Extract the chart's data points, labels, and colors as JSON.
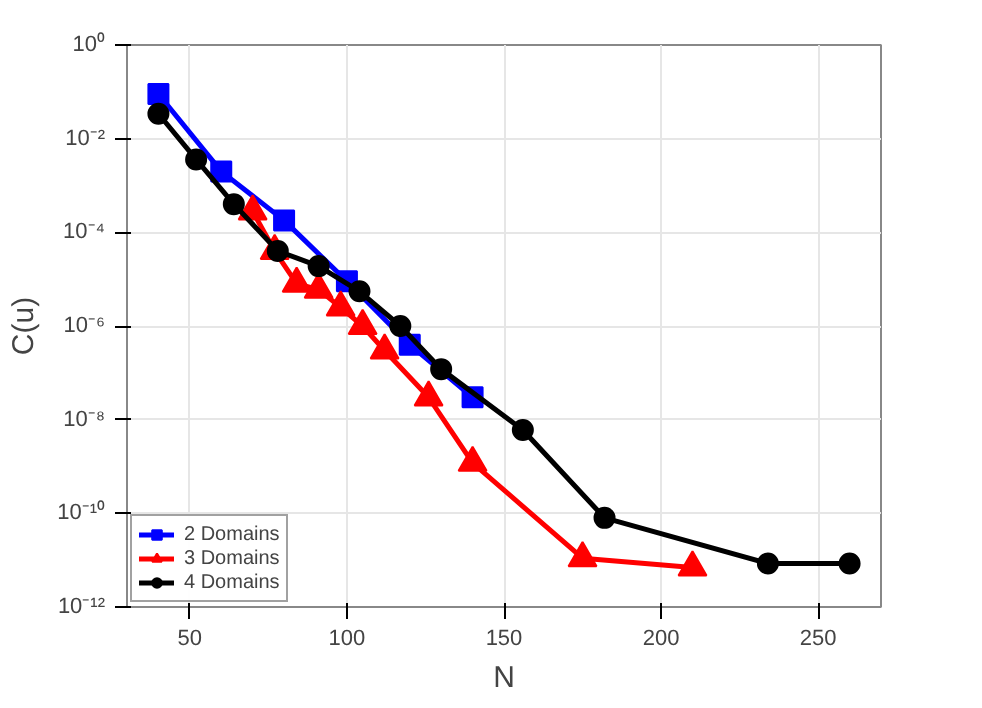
{
  "chart_data": {
    "type": "line",
    "xlabel": "N",
    "ylabel": "C(u)",
    "log": "y",
    "grid": true,
    "legend": "bottom left",
    "line_style": "solid",
    "xlim": [
      30,
      270
    ],
    "xticks": [
      50,
      100,
      150,
      200,
      250
    ],
    "ylim": [
      1e-12,
      1
    ],
    "yticks": [
      {
        "value": 1e-12,
        "label": "10⁻¹²"
      },
      {
        "value": 1e-10,
        "label": "10⁻¹⁰"
      },
      {
        "value": 1e-08,
        "label": "10⁻⁸"
      },
      {
        "value": 1e-06,
        "label": "10⁻⁶"
      },
      {
        "value": 0.0001,
        "label": "10⁻⁴"
      },
      {
        "value": 0.01,
        "label": "10⁻²"
      },
      {
        "value": 1,
        "label": "10⁰"
      }
    ],
    "series": [
      {
        "name": "2 Domains",
        "color": "#0000ff",
        "marker": "square",
        "x": [
          40,
          60,
          80,
          100,
          120,
          140
        ],
        "values": [
          0.09,
          0.002,
          0.00018,
          9e-06,
          4e-07,
          3e-08
        ]
      },
      {
        "name": "3 Domains",
        "color": "#ff0000",
        "marker": "triangle",
        "x": [
          70,
          77,
          84,
          91,
          98,
          105,
          112,
          126,
          140,
          175,
          210
        ],
        "values": [
          0.00028,
          4e-05,
          8e-06,
          6e-06,
          2.5e-06,
          1e-06,
          3e-07,
          3e-08,
          1.2e-09,
          1.1e-11,
          7e-12
        ]
      },
      {
        "name": "4 Domains",
        "color": "#000000",
        "marker": "circle",
        "x": [
          40,
          52,
          64,
          78,
          91,
          104,
          117,
          130,
          156,
          182,
          234,
          260
        ],
        "values": [
          0.034,
          0.0036,
          0.0004,
          4e-05,
          1.9e-05,
          5.5e-06,
          1e-06,
          1.2e-07,
          6e-09,
          8e-11,
          8.5e-12,
          8.5e-12
        ]
      }
    ]
  }
}
